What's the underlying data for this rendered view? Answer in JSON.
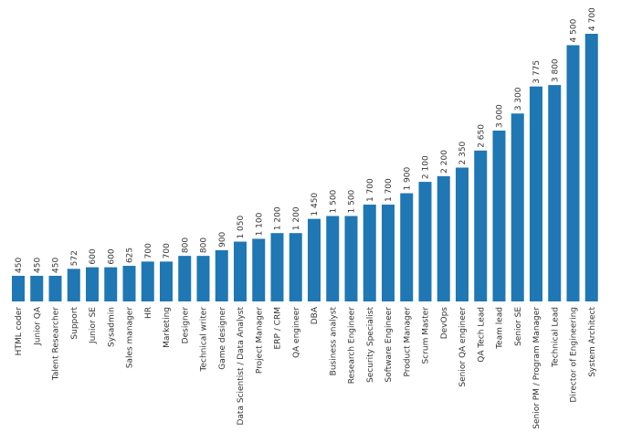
{
  "chart_data": {
    "type": "bar",
    "title": "",
    "xlabel": "",
    "ylabel": "",
    "ylim": [
      0,
      4800
    ],
    "grid": false,
    "legend": "none",
    "bar_color": "#1f77b4",
    "categories": [
      "HTML coder",
      "Junior QA",
      "Talent Researcher",
      "Support",
      "Junior SE",
      "Sysadmin",
      "Sales manager",
      "HR",
      "Marketing",
      "Designer",
      "Technical writer",
      "Game designer",
      "Data Scientist / Data Analyst",
      "Project Manager",
      "ERP / CRM",
      "QA engineer",
      "DBA",
      "Business analyst",
      "Research Engineer",
      "Security Specialist",
      "Software Engineer",
      "Product Manager",
      "Scrum Master",
      "DevOps",
      "Senior QA engineer",
      "QA Tech Lead",
      "Team lead",
      "Senior SE",
      "Senior PM / Program Manager",
      "Technical Lead",
      "Director of Engineering",
      "System Architect"
    ],
    "values": [
      450,
      450,
      450,
      572,
      600,
      600,
      625,
      700,
      700,
      800,
      800,
      900,
      1050,
      1100,
      1200,
      1200,
      1450,
      1500,
      1500,
      1700,
      1700,
      1900,
      2100,
      2200,
      2350,
      2650,
      3000,
      3300,
      3775,
      3800,
      4500,
      4700
    ],
    "value_labels": [
      "450",
      "450",
      "450",
      "572",
      "600",
      "600",
      "625",
      "700",
      "700",
      "800",
      "800",
      "900",
      "1 050",
      "1 100",
      "1 200",
      "1 200",
      "1 450",
      "1 500",
      "1 500",
      "1 700",
      "1 700",
      "1 900",
      "2 100",
      "2 200",
      "2 350",
      "2 650",
      "3 000",
      "3 300",
      "3 775",
      "3 800",
      "4 500",
      "4 700"
    ]
  }
}
